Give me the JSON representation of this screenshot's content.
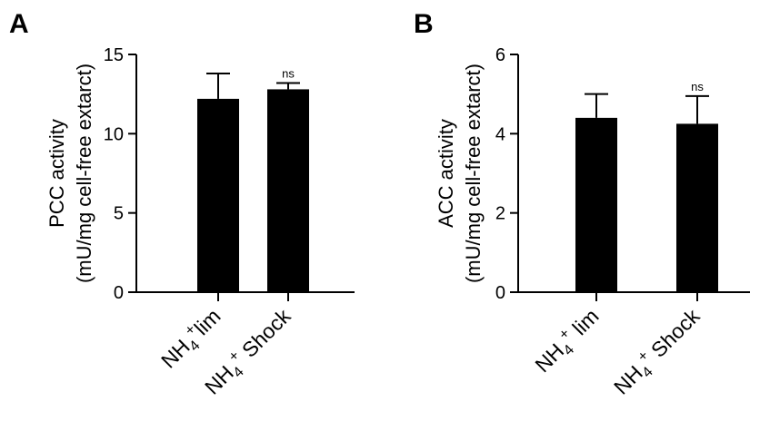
{
  "chart_data": [
    {
      "type": "bar",
      "panel": "A",
      "ylabel_line1": "PCC activity",
      "ylabel_line2": "(mU/mg cell-free extarct)",
      "ylim": [
        0,
        15
      ],
      "yticks": [
        0,
        5,
        10,
        15
      ],
      "categories": [
        {
          "base": "NH",
          "sub": "4",
          "sup": "+",
          "rest": "lim"
        },
        {
          "base": "NH",
          "sub": "4",
          "sup": "+",
          "rest": " Shock"
        }
      ],
      "values": [
        12.2,
        12.8
      ],
      "errors": [
        1.6,
        0.4
      ],
      "annotations": [
        "",
        "ns"
      ],
      "bar_color": "#000000"
    },
    {
      "type": "bar",
      "panel": "B",
      "ylabel_line1": "ACC activity",
      "ylabel_line2": "(mU/mg cell-free extarct)",
      "ylim": [
        0,
        6
      ],
      "yticks": [
        0,
        2,
        4,
        6
      ],
      "categories": [
        {
          "base": "NH",
          "sub": "4",
          "sup": "+",
          "rest": " lim"
        },
        {
          "base": "NH",
          "sub": "4",
          "sup": "+",
          "rest": " Shock"
        }
      ],
      "values": [
        4.4,
        4.25
      ],
      "errors": [
        0.6,
        0.7
      ],
      "annotations": [
        "",
        "ns"
      ],
      "bar_color": "#000000"
    }
  ]
}
